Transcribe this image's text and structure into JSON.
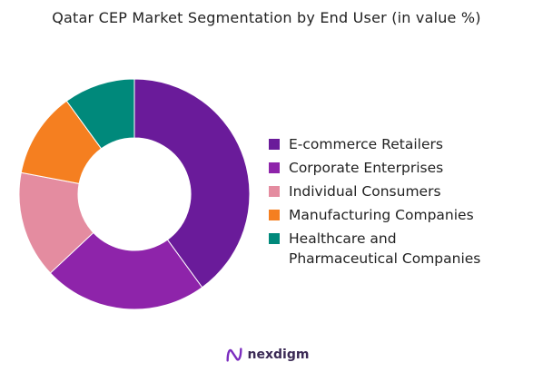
{
  "chart_data": {
    "type": "pie",
    "title": "Qatar CEP Market Segmentation by End User (in value %)",
    "categories": [
      "E-commerce Retailers",
      "Corporate Enterprises",
      "Individual Consumers",
      "Manufacturing Companies",
      "Healthcare and\nPharmaceutical Companies"
    ],
    "values": [
      40,
      23,
      15,
      12,
      10
    ],
    "colors": [
      "#6a1b9a",
      "#8e24aa",
      "#e48ca0",
      "#f57f20",
      "#00897b"
    ],
    "legend_position": "right",
    "style": "donut"
  },
  "brand": {
    "name": "nexdigm",
    "logo_color": "#7b2cbf"
  }
}
